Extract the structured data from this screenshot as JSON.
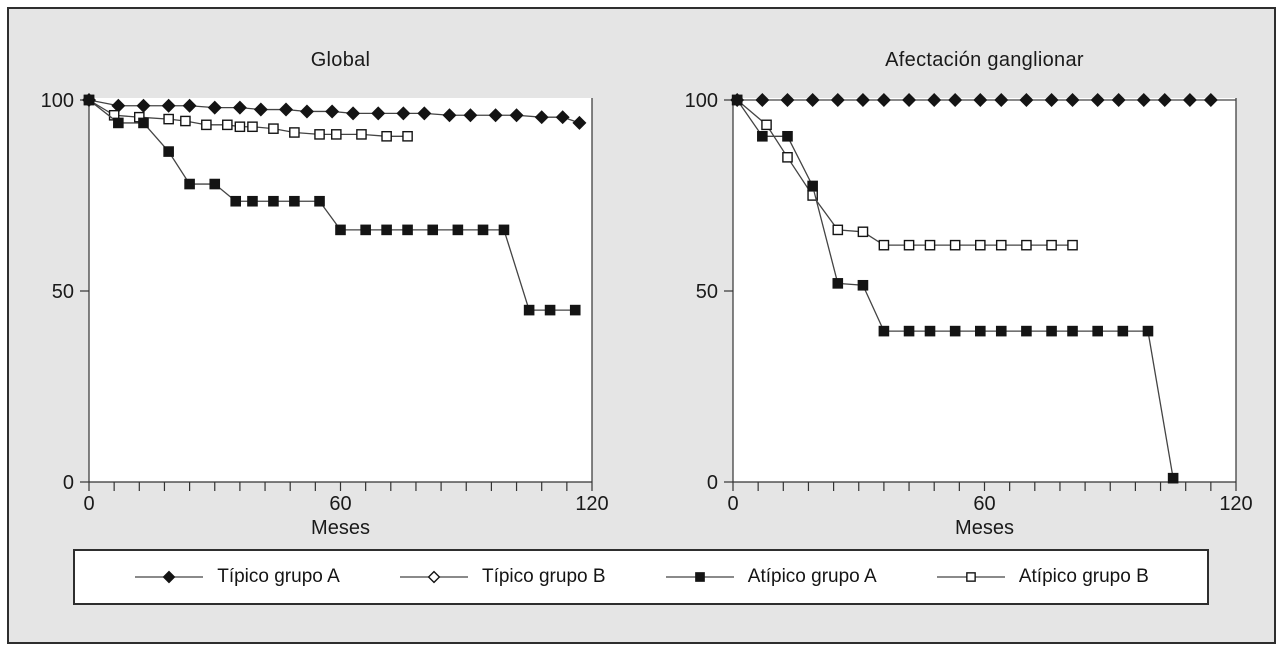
{
  "colors": {
    "background": "#e5e5e5",
    "plot_background": "#ffffff",
    "frame_border": "#2e2e2e",
    "axis": "#333333",
    "series_line": "#444444",
    "marker": "#141414",
    "text": "#1a1a1a"
  },
  "legend": {
    "items": [
      {
        "label": "Típico grupo A",
        "marker": "diamond-filled"
      },
      {
        "label": "Típico grupo B",
        "marker": "diamond-open"
      },
      {
        "label": "Atípico grupo A",
        "marker": "square-filled"
      },
      {
        "label": "Atípico grupo B",
        "marker": "square-open"
      }
    ]
  },
  "chart_data": [
    {
      "type": "line",
      "title": "Global",
      "xlabel": "Meses",
      "ylabel": "",
      "xlim": [
        0,
        120
      ],
      "ylim": [
        0,
        100
      ],
      "x_major_ticks": [
        0,
        60,
        120
      ],
      "x_minor_step": 6,
      "y_ticks": [
        0,
        50,
        100
      ],
      "grid": false,
      "series": [
        {
          "name": "Típico grupo A",
          "marker": "diamond-filled",
          "points": [
            [
              0,
              100
            ],
            [
              7,
              98.5
            ],
            [
              13,
              98.5
            ],
            [
              19,
              98.5
            ],
            [
              24,
              98.5
            ],
            [
              30,
              98
            ],
            [
              36,
              98
            ],
            [
              41,
              97.5
            ],
            [
              47,
              97.5
            ],
            [
              52,
              97
            ],
            [
              58,
              97
            ],
            [
              63,
              96.5
            ],
            [
              69,
              96.5
            ],
            [
              75,
              96.5
            ],
            [
              80,
              96.5
            ],
            [
              86,
              96
            ],
            [
              91,
              96
            ],
            [
              97,
              96
            ],
            [
              102,
              96
            ],
            [
              108,
              95.5
            ],
            [
              113,
              95.5
            ],
            [
              117,
              94
            ]
          ]
        },
        {
          "name": "Atípico grupo B",
          "marker": "square-open",
          "points": [
            [
              0,
              100
            ],
            [
              6,
              96
            ],
            [
              12,
              95.5
            ],
            [
              19,
              95
            ],
            [
              23,
              94.5
            ],
            [
              28,
              93.5
            ],
            [
              33,
              93.5
            ],
            [
              36,
              93
            ],
            [
              39,
              93
            ],
            [
              44,
              92.5
            ],
            [
              49,
              91.5
            ],
            [
              55,
              91
            ],
            [
              59,
              91
            ],
            [
              65,
              91
            ],
            [
              71,
              90.5
            ],
            [
              76,
              90.5
            ]
          ]
        },
        {
          "name": "Atípico grupo A",
          "marker": "square-filled",
          "points": [
            [
              0,
              100
            ],
            [
              7,
              94
            ],
            [
              13,
              94
            ],
            [
              19,
              86.5
            ],
            [
              24,
              78
            ],
            [
              30,
              78
            ],
            [
              35,
              73.5
            ],
            [
              39,
              73.5
            ],
            [
              44,
              73.5
            ],
            [
              49,
              73.5
            ],
            [
              55,
              73.5
            ],
            [
              60,
              66
            ],
            [
              66,
              66
            ],
            [
              71,
              66
            ],
            [
              76,
              66
            ],
            [
              82,
              66
            ],
            [
              88,
              66
            ],
            [
              94,
              66
            ],
            [
              99,
              66
            ],
            [
              105,
              45
            ],
            [
              110,
              45
            ],
            [
              116,
              45
            ]
          ]
        }
      ]
    },
    {
      "type": "line",
      "title": "Afectación ganglionar",
      "xlabel": "Meses",
      "ylabel": "",
      "xlim": [
        0,
        120
      ],
      "ylim": [
        0,
        100
      ],
      "x_major_ticks": [
        0,
        60,
        120
      ],
      "x_minor_step": 6,
      "y_ticks": [
        0,
        50,
        100
      ],
      "grid": false,
      "series": [
        {
          "name": "Típico grupo A",
          "marker": "diamond-filled",
          "line_end_x": 120,
          "points": [
            [
              1,
              100
            ],
            [
              7,
              100
            ],
            [
              13,
              100
            ],
            [
              19,
              100
            ],
            [
              25,
              100
            ],
            [
              31,
              100
            ],
            [
              36,
              100
            ],
            [
              42,
              100
            ],
            [
              48,
              100
            ],
            [
              53,
              100
            ],
            [
              59,
              100
            ],
            [
              64,
              100
            ],
            [
              70,
              100
            ],
            [
              76,
              100
            ],
            [
              81,
              100
            ],
            [
              87,
              100
            ],
            [
              92,
              100
            ],
            [
              98,
              100
            ],
            [
              103,
              100
            ],
            [
              109,
              100
            ],
            [
              114,
              100
            ]
          ]
        },
        {
          "name": "Atípico grupo B",
          "marker": "square-open",
          "points": [
            [
              1,
              100
            ],
            [
              8,
              93.5
            ],
            [
              13,
              85
            ],
            [
              19,
              75
            ],
            [
              25,
              66
            ],
            [
              31,
              65.5
            ],
            [
              36,
              62
            ],
            [
              42,
              62
            ],
            [
              47,
              62
            ],
            [
              53,
              62
            ],
            [
              59,
              62
            ],
            [
              64,
              62
            ],
            [
              70,
              62
            ],
            [
              76,
              62
            ],
            [
              81,
              62
            ]
          ]
        },
        {
          "name": "Atípico grupo A",
          "marker": "square-filled",
          "points": [
            [
              1,
              100
            ],
            [
              7,
              90.5
            ],
            [
              13,
              90.5
            ],
            [
              19,
              77.5
            ],
            [
              25,
              52
            ],
            [
              31,
              51.5
            ],
            [
              36,
              39.5
            ],
            [
              42,
              39.5
            ],
            [
              47,
              39.5
            ],
            [
              53,
              39.5
            ],
            [
              59,
              39.5
            ],
            [
              64,
              39.5
            ],
            [
              70,
              39.5
            ],
            [
              76,
              39.5
            ],
            [
              81,
              39.5
            ],
            [
              87,
              39.5
            ],
            [
              93,
              39.5
            ],
            [
              99,
              39.5
            ],
            [
              105,
              1
            ]
          ]
        }
      ]
    }
  ]
}
